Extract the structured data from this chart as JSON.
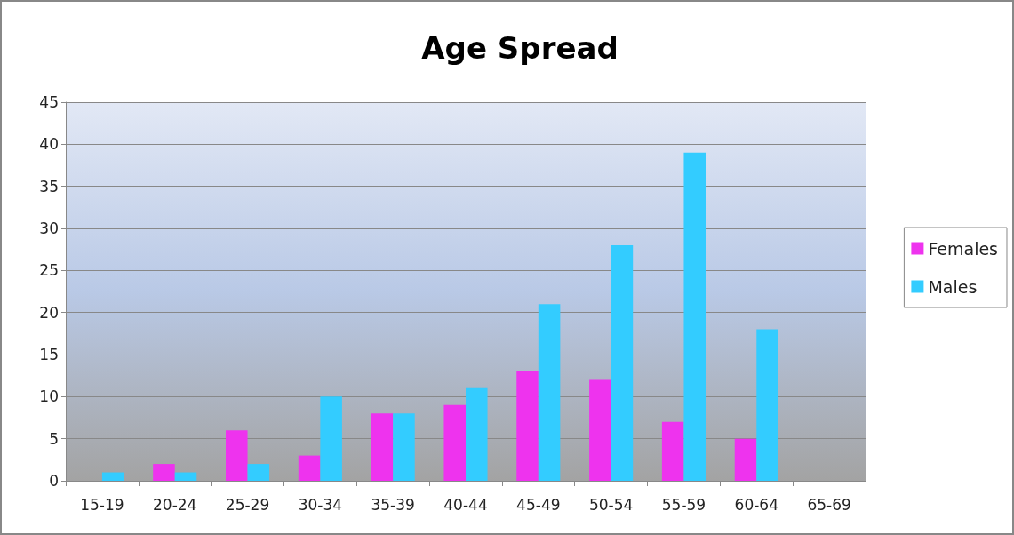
{
  "chart_data": {
    "type": "bar",
    "title": "Age Spread",
    "categories": [
      "15-19",
      "20-24",
      "25-29",
      "30-34",
      "35-39",
      "40-44",
      "45-49",
      "50-54",
      "55-59",
      "60-64",
      "65-69"
    ],
    "series": [
      {
        "name": "Females",
        "color": "#ee33ee",
        "values": [
          0,
          2,
          6,
          3,
          8,
          9,
          13,
          12,
          7,
          5,
          0
        ]
      },
      {
        "name": "Males",
        "color": "#33ccff",
        "values": [
          1,
          1,
          2,
          10,
          8,
          11,
          21,
          28,
          39,
          18,
          0
        ]
      }
    ],
    "ylim": [
      0,
      45
    ],
    "yticks": [
      0,
      5,
      10,
      15,
      20,
      25,
      30,
      35,
      40,
      45
    ],
    "grid": "y",
    "legend": "right"
  }
}
